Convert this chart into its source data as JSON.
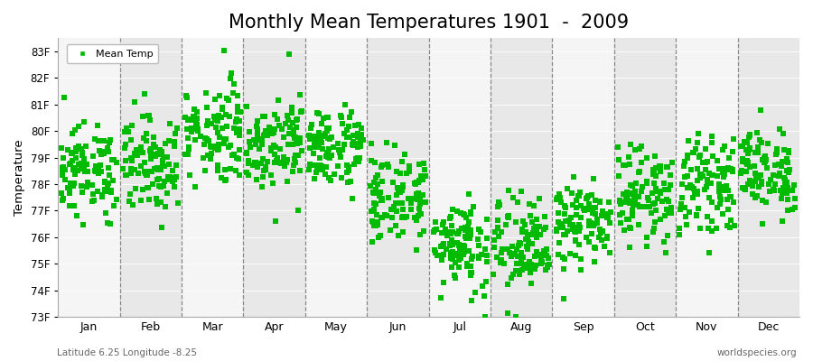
{
  "title": "Monthly Mean Temperatures 1901  -  2009",
  "ylabel": "Temperature",
  "xlabel_labels": [
    "Jan",
    "Feb",
    "Mar",
    "Apr",
    "May",
    "Jun",
    "Jul",
    "Aug",
    "Sep",
    "Oct",
    "Nov",
    "Dec"
  ],
  "ytick_labels": [
    "73F",
    "74F",
    "75F",
    "76F",
    "77F",
    "78F",
    "79F",
    "80F",
    "81F",
    "82F",
    "83F"
  ],
  "ytick_values": [
    73,
    74,
    75,
    76,
    77,
    78,
    79,
    80,
    81,
    82,
    83
  ],
  "ylim": [
    73,
    83.5
  ],
  "dot_color": "#00BB00",
  "dot_size": 14,
  "legend_label": "Mean Temp",
  "footnote_left": "Latitude 6.25 Longitude -8.25",
  "footnote_right": "worldspecies.org",
  "bg_gray": "#E8E8E8",
  "bg_white": "#F5F5F5",
  "title_fontsize": 15,
  "years": 109,
  "monthly_means": [
    78.5,
    78.8,
    80.0,
    79.6,
    79.4,
    77.5,
    75.8,
    75.6,
    76.5,
    77.6,
    78.0,
    78.5
  ],
  "monthly_stds": [
    0.85,
    0.9,
    0.95,
    0.85,
    0.75,
    0.85,
    0.9,
    0.95,
    0.75,
    0.85,
    0.85,
    0.8
  ]
}
